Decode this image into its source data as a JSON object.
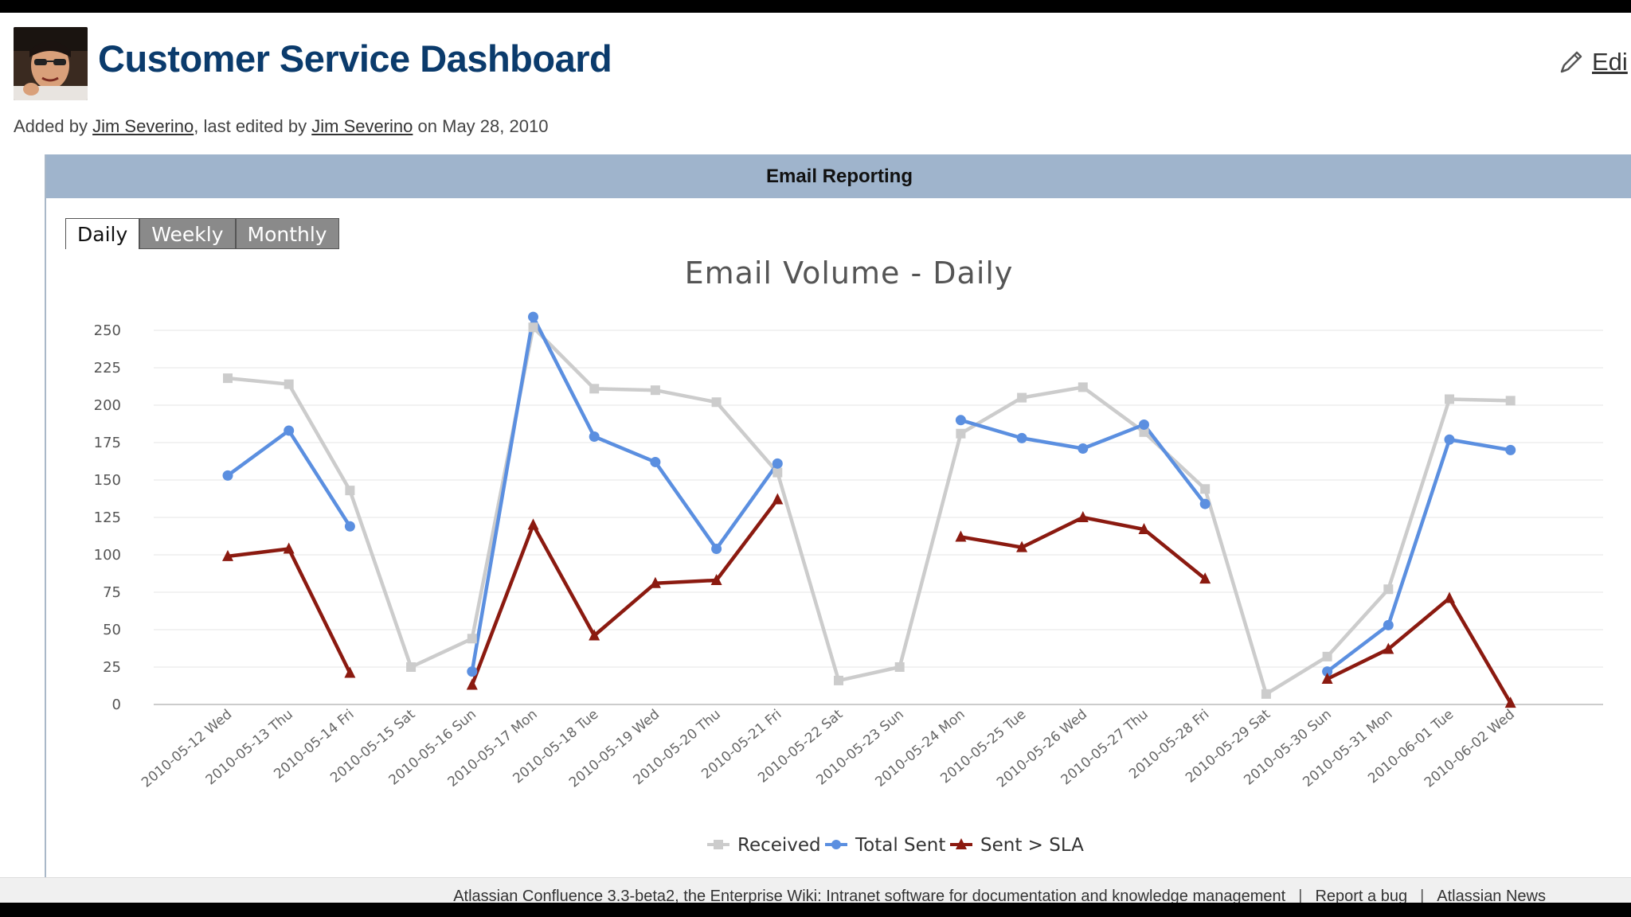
{
  "page": {
    "title": "Customer Service Dashboard",
    "edit_label": "Edi",
    "byline": {
      "prefix": "Added by",
      "author": "Jim Severino",
      "middle": ", last edited by",
      "editor": "Jim Severino",
      "suffix": "on May 28, 2010"
    }
  },
  "panel": {
    "header": "Email Reporting",
    "tabs": [
      "Daily",
      "Weekly",
      "Monthly"
    ]
  },
  "footer": {
    "text": "Atlassian Confluence 3.3-beta2, the Enterprise Wiki: Intranet software for documentation and knowledge management",
    "sep": "|",
    "report_bug": "Report a bug",
    "news": "Atlassian News"
  },
  "colors": {
    "received": "#cccccc",
    "total_sent": "#5b8fe0",
    "sent_sla": "#8b1a10"
  },
  "chart_data": {
    "type": "line",
    "title": "Email Volume - Daily",
    "xlabel": "",
    "ylabel": "",
    "ylim": [
      0,
      250
    ],
    "yticks": [
      0,
      25,
      50,
      75,
      100,
      125,
      150,
      175,
      200,
      225,
      250
    ],
    "legend": "bottom-center",
    "grid": true,
    "categories": [
      "2010-05-12 Wed",
      "2010-05-13 Thu",
      "2010-05-14 Fri",
      "2010-05-15 Sat",
      "2010-05-16 Sun",
      "2010-05-17 Mon",
      "2010-05-18 Tue",
      "2010-05-19 Wed",
      "2010-05-20 Thu",
      "2010-05-21 Fri",
      "2010-05-22 Sat",
      "2010-05-23 Sun",
      "2010-05-24 Mon",
      "2010-05-25 Tue",
      "2010-05-26 Wed",
      "2010-05-27 Thu",
      "2010-05-28 Fri",
      "2010-05-29 Sat",
      "2010-05-30 Sun",
      "2010-05-31 Mon",
      "2010-06-01 Tue",
      "2010-06-02 Wed"
    ],
    "series": [
      {
        "name": "Received",
        "marker": "square",
        "values": [
          218,
          214,
          143,
          25,
          44,
          252,
          211,
          210,
          202,
          155,
          16,
          25,
          181,
          205,
          212,
          182,
          144,
          7,
          32,
          77,
          204,
          203
        ]
      },
      {
        "name": "Total Sent",
        "marker": "circle",
        "values": [
          153,
          183,
          119,
          null,
          22,
          259,
          179,
          162,
          104,
          161,
          null,
          null,
          190,
          178,
          171,
          187,
          134,
          null,
          22,
          53,
          177,
          170
        ]
      },
      {
        "name": "Sent > SLA",
        "marker": "triangle",
        "values": [
          99,
          104,
          21,
          null,
          13,
          120,
          46,
          81,
          83,
          137,
          null,
          null,
          112,
          105,
          125,
          117,
          84,
          null,
          17,
          37,
          71,
          1
        ]
      }
    ]
  }
}
